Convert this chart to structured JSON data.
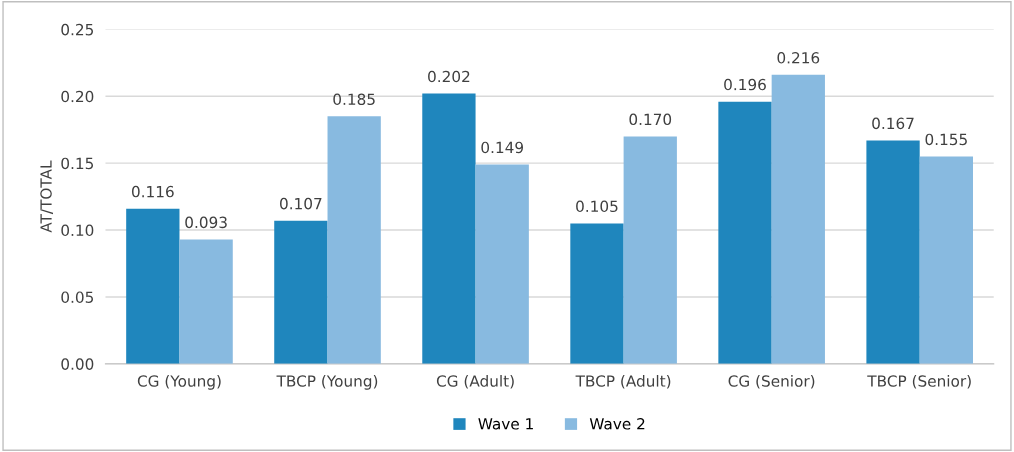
{
  "chart_data": {
    "type": "bar",
    "ylabel": "AT/TOTAL",
    "categories": [
      "CG (Young)",
      "TBCP (Young)",
      "CG (Adult)",
      "TBCP (Adult)",
      "CG (Senior)",
      "TBCP (Senior)"
    ],
    "series": [
      {
        "name": "Wave 1",
        "color": "#1f86bd",
        "values": [
          0.116,
          0.107,
          0.202,
          0.105,
          0.196,
          0.167
        ],
        "value_labels": [
          "0.116",
          "0.107",
          "0.202",
          "0.105",
          "0.196",
          "0.167"
        ]
      },
      {
        "name": "Wave 2",
        "color": "#88bae0",
        "values": [
          0.093,
          0.185,
          0.149,
          0.17,
          0.216,
          0.155
        ],
        "value_labels": [
          "0.093",
          "0.185",
          "0.149",
          "0.170",
          "0.216",
          "0.155"
        ]
      }
    ],
    "ylim": [
      0,
      0.25
    ],
    "yticks": [
      {
        "value": 0,
        "label": "0.00"
      },
      {
        "value": 0.05,
        "label": "0.05"
      },
      {
        "value": 0.1,
        "label": "0.10"
      },
      {
        "value": 0.15,
        "label": "0.15"
      },
      {
        "value": 0.2,
        "label": "0.20"
      },
      {
        "value": 0.25,
        "label": "0.25"
      }
    ],
    "grid": "y",
    "legend": "bottom"
  }
}
